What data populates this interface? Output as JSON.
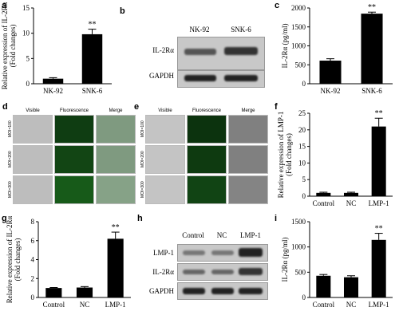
{
  "panel_letters": {
    "a": "a",
    "b": "b",
    "c": "c",
    "d": "d",
    "e": "e",
    "f": "f",
    "g": "g",
    "h": "h",
    "i": "i"
  },
  "blot_b": {
    "lanes": [
      "NK-92",
      "SNK-6"
    ],
    "rows": [
      "IL-2Rα",
      "GAPDH"
    ]
  },
  "blot_h": {
    "lanes": [
      "Control",
      "NC",
      "LMP-1"
    ],
    "rows": [
      "LMP-1",
      "IL-2Rα",
      "GAPDH"
    ]
  },
  "micro_d": {
    "headers": [
      "Visible",
      "Fluorescence",
      "Merge"
    ],
    "rows": [
      "MOI=100",
      "MOI=200",
      "MOI=300"
    ]
  },
  "micro_e": {
    "headers": [
      "Visible",
      "Fluorescence",
      "Merge"
    ],
    "rows": [
      "MOI=100",
      "MOI=200",
      "MOI=300"
    ]
  },
  "colors": {
    "bar": "#000000",
    "visible": "#bdbdbd",
    "fluorescence": "#0f3d12",
    "merge": "#7f9a80"
  },
  "chart_data": [
    {
      "id": "a",
      "type": "bar",
      "categories": [
        "NK-92",
        "SNK-6"
      ],
      "values": [
        1.0,
        9.8
      ],
      "errors": [
        0.2,
        1.0
      ],
      "sig": [
        "",
        "**"
      ],
      "ylabel": "Relative expression of IL-2Rα (Fold changes)",
      "ylim": [
        0,
        15
      ],
      "yticks": [
        0,
        5,
        10,
        15
      ]
    },
    {
      "id": "c",
      "type": "bar",
      "categories": [
        "NK-92",
        "SNK-6"
      ],
      "values": [
        610,
        1850
      ],
      "errors": [
        50,
        40
      ],
      "sig": [
        "",
        "**"
      ],
      "ylabel": "IL-2Rα (pg/ml)",
      "ylim": [
        0,
        2000
      ],
      "yticks": [
        0,
        500,
        1000,
        1500,
        2000
      ]
    },
    {
      "id": "f",
      "type": "bar",
      "categories": [
        "Control",
        "NC",
        "LMP-1"
      ],
      "values": [
        1.0,
        1.0,
        21.0
      ],
      "errors": [
        0.2,
        0.2,
        2.5
      ],
      "sig": [
        "",
        "",
        "**"
      ],
      "ylabel": "Relative expression of LMP-1 (Fold changes)",
      "ylim": [
        0,
        25
      ],
      "yticks": [
        0,
        5,
        10,
        15,
        20,
        25
      ]
    },
    {
      "id": "g",
      "type": "bar",
      "categories": [
        "Control",
        "NC",
        "LMP-1"
      ],
      "values": [
        1.0,
        1.05,
        6.2
      ],
      "errors": [
        0.05,
        0.1,
        0.7
      ],
      "sig": [
        "",
        "",
        "**"
      ],
      "ylabel": "Relative expression of IL-2Rα (Fold changes)",
      "ylim": [
        0,
        8
      ],
      "yticks": [
        0,
        2,
        4,
        6,
        8
      ]
    },
    {
      "id": "i",
      "type": "bar",
      "categories": [
        "Control",
        "NC",
        "LMP-1"
      ],
      "values": [
        430,
        400,
        1140
      ],
      "errors": [
        25,
        30,
        130
      ],
      "sig": [
        "",
        "",
        "**"
      ],
      "ylabel": "IL-2Rα (pg/ml)",
      "ylim": [
        0,
        1500
      ],
      "yticks": [
        0,
        500,
        1000,
        1500
      ]
    }
  ]
}
